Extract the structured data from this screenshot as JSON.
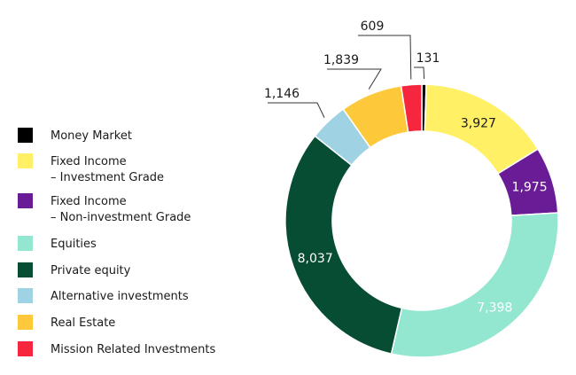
{
  "chart_data": {
    "type": "donut",
    "categories": [
      "Money Market",
      "Fixed Income – Investment Grade",
      "Fixed Income – Non-investment Grade",
      "Equities",
      "Private equity",
      "Alternative investments",
      "Real Estate",
      "Mission Related Investments"
    ],
    "values": [
      131,
      3927,
      1975,
      7398,
      8037,
      1146,
      1839,
      609
    ],
    "value_labels": [
      "131",
      "3,927",
      "1,975",
      "7,398",
      "8,037",
      "1,146",
      "1,839",
      "609"
    ],
    "colors": [
      "#000000",
      "#fff066",
      "#6a1b96",
      "#93e6cf",
      "#064d33",
      "#9fd3e3",
      "#fdc93a",
      "#f5263d"
    ],
    "legend": "left"
  }
}
